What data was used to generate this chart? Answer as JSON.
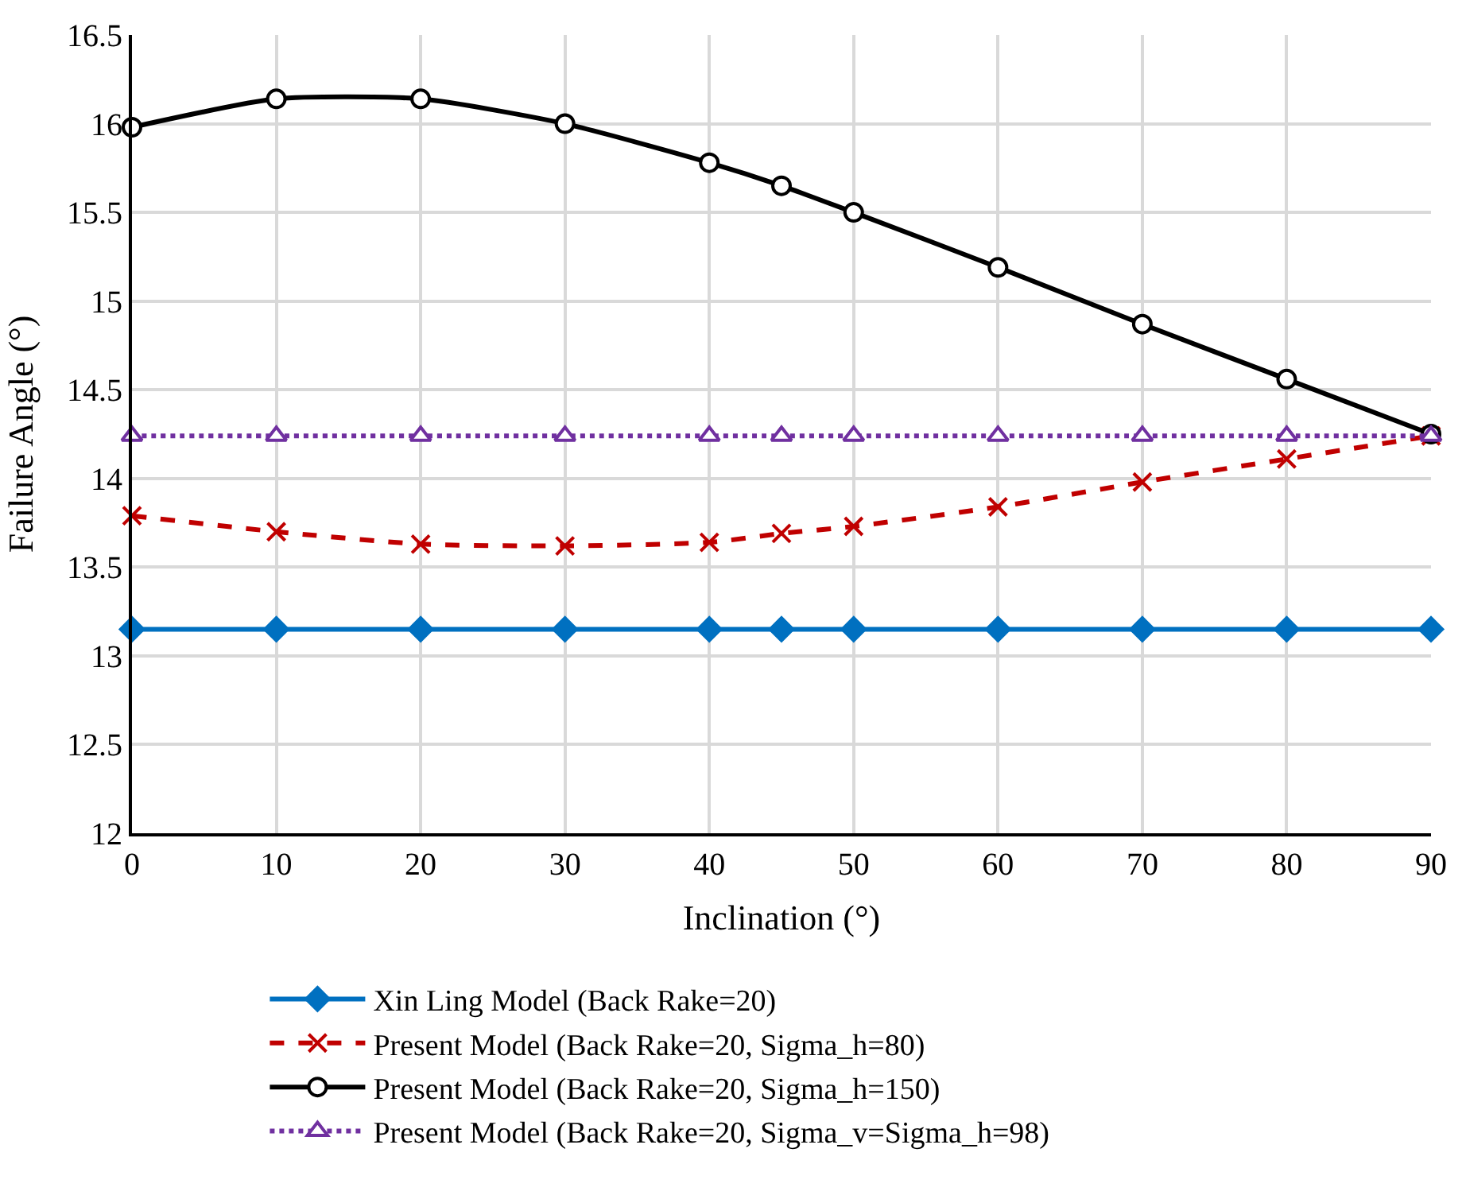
{
  "chart_data": {
    "type": "line",
    "xlabel": "Inclination (°)",
    "ylabel": "Failure Angle (°)",
    "x": [
      0,
      10,
      20,
      30,
      40,
      45,
      50,
      60,
      70,
      80,
      90
    ],
    "xlim": [
      0,
      90
    ],
    "xticks": [
      0,
      10,
      20,
      30,
      40,
      50,
      60,
      70,
      80,
      90
    ],
    "ylim": [
      12,
      16.5
    ],
    "yticks": [
      12,
      12.5,
      13,
      13.5,
      14,
      14.5,
      15,
      15.5,
      16,
      16.5
    ],
    "grid": true,
    "legend": "bottom",
    "series": [
      {
        "name": "Xin Ling Model (Back Rake=20)",
        "color": "#0070c0",
        "marker": "diamond",
        "line_style": "solid",
        "values": [
          13.15,
          13.15,
          13.15,
          13.15,
          13.15,
          13.15,
          13.15,
          13.15,
          13.15,
          13.15,
          13.15
        ]
      },
      {
        "name": "Present Model (Back Rake=20, Sigma_h=80)",
        "color": "#c00000",
        "marker": "cross",
        "line_style": "dashed",
        "values": [
          13.79,
          13.7,
          13.63,
          13.62,
          13.64,
          13.69,
          13.73,
          13.84,
          13.98,
          14.11,
          14.24
        ]
      },
      {
        "name": "Present Model (Back Rake=20, Sigma_h=150)",
        "color": "#000000",
        "marker": "circle",
        "line_style": "solid",
        "values": [
          15.98,
          16.14,
          16.14,
          16.0,
          15.78,
          15.65,
          15.5,
          15.19,
          14.87,
          14.56,
          14.25
        ]
      },
      {
        "name": "Present Model (Back Rake=20, Sigma_v=Sigma_h=98)",
        "color": "#7030a0",
        "marker": "triangle",
        "line_style": "dotted",
        "values": [
          14.24,
          14.24,
          14.24,
          14.24,
          14.24,
          14.24,
          14.24,
          14.24,
          14.24,
          14.24,
          14.24
        ]
      }
    ]
  }
}
